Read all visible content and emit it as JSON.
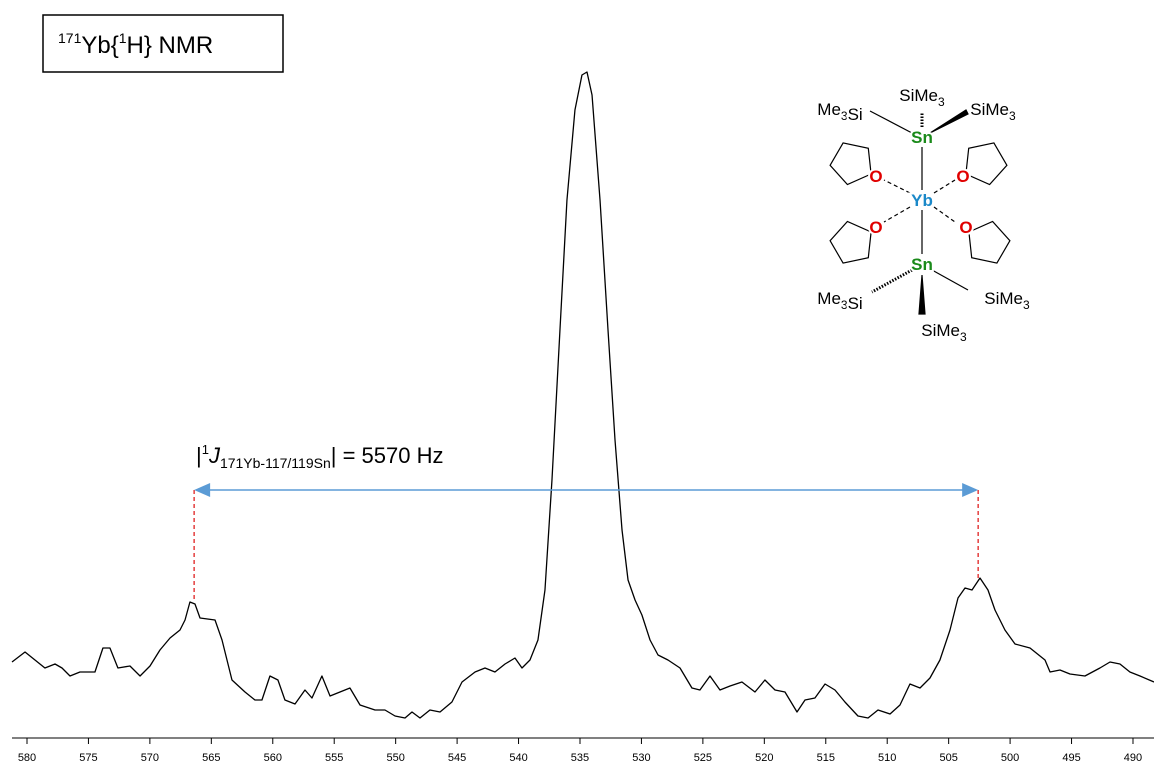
{
  "chart_data": {
    "type": "line",
    "title": {
      "sup": "171",
      "text1": "Yb{",
      "sup2": "1",
      "text2": "H} NMR"
    },
    "annotation": {
      "bar": "|",
      "sup": "1",
      "italic": "J",
      "sub": "171Yb-117/119Sn",
      "tail": "| = 5570 Hz"
    },
    "markers_x": [
      566.4,
      502.6
    ],
    "x": [
      581.22,
      580.16,
      579.35,
      578.54,
      577.72,
      577.15,
      576.5,
      575.69,
      574.47,
      573.82,
      573.25,
      572.6,
      571.62,
      570.8,
      569.99,
      569.18,
      568.36,
      567.55,
      567.14,
      566.74,
      566.33,
      565.92,
      564.7,
      564.13,
      563.32,
      562.26,
      561.45,
      560.88,
      560.23,
      559.58,
      559.01,
      558.19,
      557.38,
      556.81,
      556.0,
      555.34,
      554.53,
      553.72,
      552.9,
      551.68,
      550.87,
      550.05,
      549.24,
      548.67,
      548.02,
      547.21,
      546.39,
      545.42,
      544.6,
      543.54,
      542.73,
      541.92,
      541.1,
      540.29,
      539.72,
      539.07,
      538.42,
      537.85,
      537.28,
      536.63,
      536.06,
      535.41,
      534.84,
      534.43,
      534.02,
      533.37,
      532.72,
      532.15,
      531.58,
      531.09,
      530.52,
      529.96,
      529.3,
      528.65,
      527.84,
      526.86,
      525.89,
      525.24,
      524.42,
      523.61,
      522.79,
      521.82,
      520.76,
      519.95,
      519.13,
      518.32,
      517.34,
      516.69,
      515.88,
      515.06,
      514.25,
      513.44,
      512.38,
      511.56,
      510.75,
      509.77,
      508.96,
      508.15,
      507.33,
      506.52,
      505.71,
      504.89,
      504.24,
      503.67,
      503.1,
      502.45,
      501.8,
      501.23,
      500.42,
      499.6,
      498.38,
      497.16,
      496.75,
      495.94,
      495.13,
      493.91,
      492.69,
      491.87,
      491.06,
      490.25,
      489.43,
      488.29
    ],
    "series": [
      {
        "color": "#000000",
        "values": [
          68,
          78,
          70,
          62,
          66,
          62,
          54,
          58,
          58,
          82,
          82,
          62,
          64,
          54,
          64,
          80,
          92,
          100,
          110,
          128,
          126,
          112,
          110,
          90,
          50,
          38,
          30,
          30,
          54,
          50,
          30,
          26,
          40,
          32,
          54,
          34,
          38,
          42,
          25,
          20,
          20,
          14,
          12,
          18,
          12,
          20,
          18,
          28,
          48,
          58,
          62,
          58,
          66,
          72,
          62,
          70,
          90,
          140,
          250,
          400,
          530,
          620,
          655,
          658,
          635,
          530,
          400,
          290,
          200,
          150,
          130,
          115,
          90,
          75,
          70,
          62,
          42,
          40,
          54,
          40,
          44,
          48,
          38,
          50,
          40,
          38,
          18,
          30,
          32,
          46,
          40,
          28,
          14,
          12,
          20,
          16,
          25,
          46,
          42,
          52,
          70,
          100,
          132,
          142,
          140,
          152,
          140,
          120,
          100,
          86,
          82,
          70,
          58,
          60,
          56,
          54,
          62,
          68,
          66,
          58,
          54,
          48
        ]
      }
    ],
    "xlim": [
      581.22,
      488.29
    ],
    "ylim": [
      0,
      670
    ],
    "xticks": [
      580,
      575,
      570,
      565,
      560,
      555,
      550,
      545,
      540,
      535,
      530,
      525,
      520,
      515,
      510,
      505,
      500,
      495,
      490
    ],
    "structure": {
      "atoms": [
        "SiMe3",
        "Me3Si",
        "SiMe3",
        "Sn",
        "O",
        "O",
        "Yb",
        "O",
        "O",
        "Sn",
        "Me3Si",
        "SiMe3",
        "SiMe3"
      ]
    }
  }
}
